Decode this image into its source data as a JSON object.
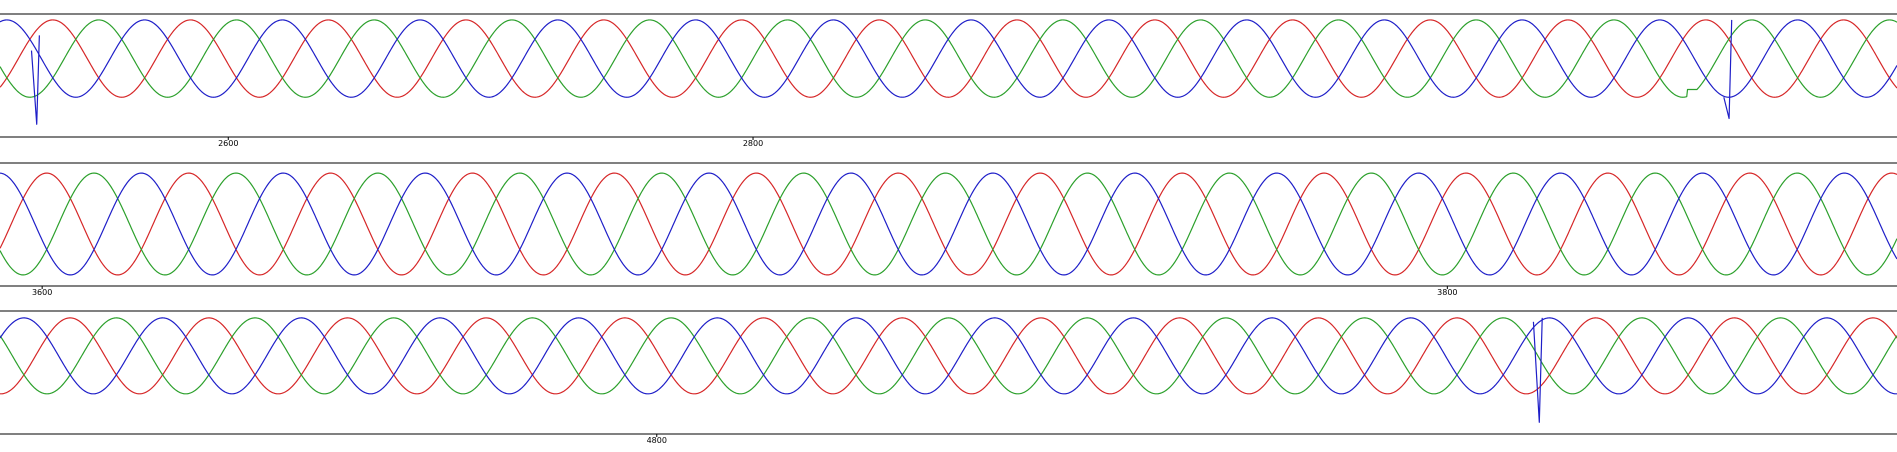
{
  "chart_data": [
    {
      "type": "line",
      "title": "",
      "xlabel": "",
      "ylabel": "",
      "xlim": [
        2513,
        3236
      ],
      "ylim": [
        -1.9,
        1.05
      ],
      "grid": false,
      "legend": "none",
      "xticks": [
        2600,
        2800
      ],
      "series_colors": [
        "#d62728",
        "#2ca02c",
        "#1f1fc8"
      ],
      "phases_deg": [
        0,
        -120,
        120
      ],
      "period_samples": 52.5,
      "shape": "sinusoidal three-phase waveform, amplitude 1",
      "anomalies": [
        {
          "series": 2,
          "x": [
            2527,
            2528
          ],
          "y": [
            -1.7,
            0.6
          ],
          "note": "sharp dip then jump to peak"
        },
        {
          "series": 2,
          "x": [
            3172,
            3173
          ],
          "y": [
            -1.55,
            1.0
          ],
          "note": "sharp dip then jump to peak"
        },
        {
          "series": 1,
          "x": [
            3156,
            3160
          ],
          "y": [
            -0.8,
            -0.8
          ],
          "note": "small flat step"
        }
      ]
    },
    {
      "type": "line",
      "title": "",
      "xlabel": "",
      "ylabel": "",
      "xlim": [
        3594,
        3864
      ],
      "ylim": [
        -1.1,
        1.1
      ],
      "grid": false,
      "legend": "none",
      "xticks": [
        3600,
        3800
      ],
      "series_colors": [
        "#d62728",
        "#2ca02c",
        "#1f1fc8"
      ],
      "phases_deg": [
        0,
        -120,
        120
      ],
      "period_samples": 20.2,
      "shape": "sinusoidal three-phase waveform, amplitude 1",
      "anomalies": []
    },
    {
      "type": "line",
      "title": "",
      "xlabel": "",
      "ylabel": "",
      "xlim": [
        4576,
        5223
      ],
      "ylim": [
        -1.9,
        1.05
      ],
      "grid": false,
      "legend": "none",
      "xticks": [
        4800
      ],
      "series_colors": [
        "#d62728",
        "#2ca02c",
        "#1f1fc8"
      ],
      "phases_deg": [
        0,
        -120,
        120
      ],
      "period_samples": 47.3,
      "shape": "sinusoidal three-phase waveform, amplitude 1",
      "anomalies": [
        {
          "series": 2,
          "x": [
            5101,
            5102
          ],
          "y": [
            -1.75,
            1.0
          ],
          "note": "sharp dip then jump to peak"
        }
      ]
    }
  ]
}
